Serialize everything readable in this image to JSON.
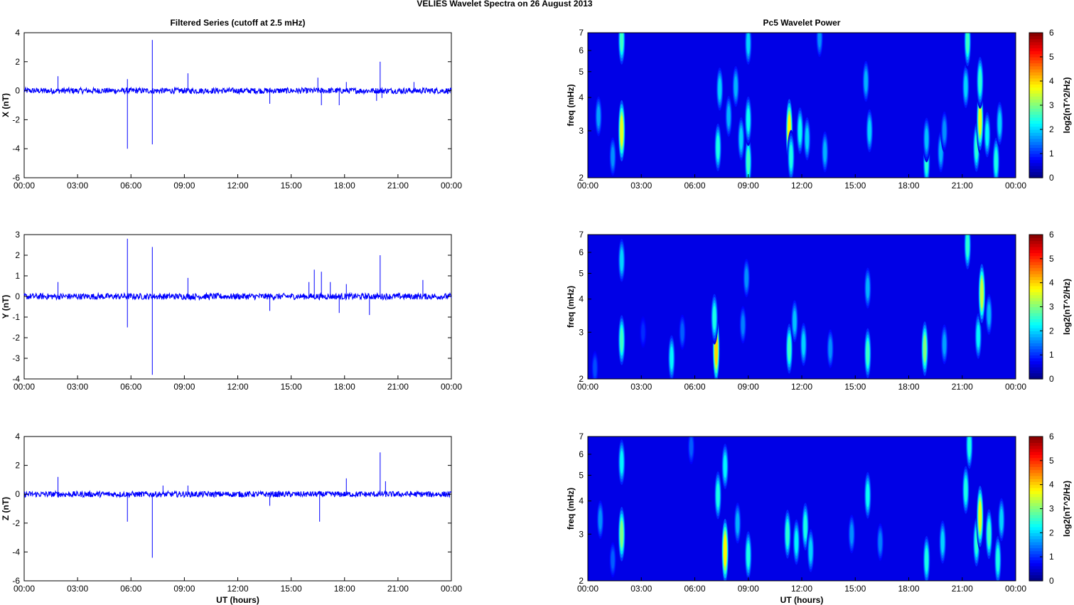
{
  "figure": {
    "title": "VELIES Wavelet Spectra on 26 August    2013"
  },
  "chart_data": [
    {
      "type": "line",
      "title": "Filtered Series (cutoff at 2.5 mHz)",
      "xlabel": "",
      "ylabel": "X (nT)",
      "xlim": [
        0,
        24
      ],
      "ylim": [
        -6,
        4
      ],
      "xticklabels": [
        "00:00",
        "03:00",
        "06:00",
        "09:00",
        "12:00",
        "15:00",
        "18:00",
        "21:00",
        "00:00"
      ],
      "yticks": [
        -6,
        -4,
        -2,
        0,
        2,
        4
      ],
      "line_color": "#0000ff",
      "baseline_amplitude": 0.2,
      "spikes": [
        [
          1.9,
          1.0
        ],
        [
          5.8,
          -4.0
        ],
        [
          5.8,
          0.8
        ],
        [
          7.2,
          3.5
        ],
        [
          7.2,
          -3.7
        ],
        [
          9.2,
          1.2
        ],
        [
          13.8,
          -0.9
        ],
        [
          16.5,
          0.9
        ],
        [
          16.7,
          -1.0
        ],
        [
          17.7,
          -1.0
        ],
        [
          18.1,
          0.6
        ],
        [
          19.8,
          -0.7
        ],
        [
          20.0,
          2.0
        ],
        [
          20.1,
          -0.5
        ],
        [
          21.9,
          0.6
        ]
      ]
    },
    {
      "type": "line",
      "xlabel": "",
      "ylabel": "Y (nT)",
      "xlim": [
        0,
        24
      ],
      "ylim": [
        -4,
        3
      ],
      "xticklabels": [
        "00:00",
        "03:00",
        "06:00",
        "09:00",
        "12:00",
        "15:00",
        "18:00",
        "21:00",
        "00:00"
      ],
      "yticks": [
        -4,
        -3,
        -2,
        -1,
        0,
        1,
        2,
        3
      ],
      "line_color": "#0000ff",
      "baseline_amplitude": 0.15,
      "spikes": [
        [
          1.9,
          0.7
        ],
        [
          5.8,
          2.8
        ],
        [
          5.8,
          -1.5
        ],
        [
          7.2,
          2.4
        ],
        [
          7.2,
          -3.8
        ],
        [
          9.2,
          0.9
        ],
        [
          13.8,
          -0.7
        ],
        [
          16.0,
          0.7
        ],
        [
          16.3,
          1.3
        ],
        [
          16.7,
          1.2
        ],
        [
          17.2,
          0.7
        ],
        [
          17.7,
          -0.8
        ],
        [
          18.1,
          0.6
        ],
        [
          19.4,
          -0.9
        ],
        [
          20.0,
          2.0
        ],
        [
          22.4,
          0.8
        ]
      ]
    },
    {
      "type": "line",
      "xlabel": "UT (hours)",
      "ylabel": "Z (nT)",
      "xlim": [
        0,
        24
      ],
      "ylim": [
        -6,
        4
      ],
      "xticklabels": [
        "00:00",
        "03:00",
        "06:00",
        "09:00",
        "12:00",
        "15:00",
        "18:00",
        "21:00",
        "00:00"
      ],
      "yticks": [
        -6,
        -4,
        -2,
        0,
        2,
        4
      ],
      "line_color": "#0000ff",
      "baseline_amplitude": 0.2,
      "spikes": [
        [
          1.9,
          1.2
        ],
        [
          5.8,
          -1.9
        ],
        [
          7.2,
          -4.4
        ],
        [
          7.8,
          0.6
        ],
        [
          9.2,
          0.6
        ],
        [
          13.8,
          -0.8
        ],
        [
          16.6,
          -1.9
        ],
        [
          18.1,
          1.1
        ],
        [
          20.0,
          2.9
        ],
        [
          20.3,
          0.9
        ]
      ]
    },
    {
      "type": "heatmap",
      "title": "Pc5 Wavelet Power",
      "xlabel": "",
      "ylabel": "freq (mHz)",
      "yscale": "log",
      "xlim": [
        0,
        24
      ],
      "ylim": [
        2,
        7
      ],
      "xticklabels": [
        "00:00",
        "03:00",
        "06:00",
        "09:00",
        "12:00",
        "15:00",
        "18:00",
        "21:00",
        "00:00"
      ],
      "yticks": [
        2,
        3,
        4,
        5,
        6,
        7
      ],
      "colormap": "jet",
      "colorbar": {
        "label": "log2(nT^2/Hz)",
        "ticks": [
          0,
          1,
          2,
          3,
          4,
          5,
          6
        ],
        "range": [
          0,
          6
        ]
      },
      "blobs": [
        {
          "t": 0.6,
          "f": 3.4,
          "power": 1.7
        },
        {
          "t": 1.4,
          "f": 2.4,
          "power": 1.6
        },
        {
          "t": 1.9,
          "f": 3.0,
          "power": 3.6
        },
        {
          "t": 1.9,
          "f": 6.6,
          "power": 2.6
        },
        {
          "t": 7.3,
          "f": 2.6,
          "power": 2.4
        },
        {
          "t": 7.4,
          "f": 4.3,
          "power": 2.0
        },
        {
          "t": 7.9,
          "f": 3.4,
          "power": 1.8
        },
        {
          "t": 8.3,
          "f": 4.4,
          "power": 1.8
        },
        {
          "t": 8.6,
          "f": 2.8,
          "power": 2.0
        },
        {
          "t": 9.0,
          "f": 2.3,
          "power": 2.6
        },
        {
          "t": 9.0,
          "f": 3.3,
          "power": 2.3
        },
        {
          "t": 9.0,
          "f": 6.4,
          "power": 2.0
        },
        {
          "t": 11.3,
          "f": 3.0,
          "power": 3.8
        },
        {
          "t": 11.4,
          "f": 2.4,
          "power": 2.4
        },
        {
          "t": 11.9,
          "f": 3.0,
          "power": 2.3
        },
        {
          "t": 12.3,
          "f": 2.8,
          "power": 2.0
        },
        {
          "t": 13.3,
          "f": 2.5,
          "power": 1.8
        },
        {
          "t": 13.0,
          "f": 6.7,
          "power": 1.6
        },
        {
          "t": 15.6,
          "f": 4.6,
          "power": 1.8
        },
        {
          "t": 15.8,
          "f": 3.0,
          "power": 2.0
        },
        {
          "t": 19.0,
          "f": 2.3,
          "power": 2.5
        },
        {
          "t": 19.0,
          "f": 2.8,
          "power": 1.9
        },
        {
          "t": 19.8,
          "f": 2.5,
          "power": 1.8
        },
        {
          "t": 20.0,
          "f": 3.0,
          "power": 1.6
        },
        {
          "t": 21.2,
          "f": 4.4,
          "power": 2.0
        },
        {
          "t": 21.3,
          "f": 6.5,
          "power": 2.6
        },
        {
          "t": 21.8,
          "f": 2.6,
          "power": 2.5
        },
        {
          "t": 22.0,
          "f": 3.3,
          "power": 3.6
        },
        {
          "t": 22.0,
          "f": 4.6,
          "power": 2.5
        },
        {
          "t": 22.4,
          "f": 2.9,
          "power": 2.2
        },
        {
          "t": 22.9,
          "f": 2.3,
          "power": 2.4
        },
        {
          "t": 23.1,
          "f": 3.2,
          "power": 2.0
        }
      ]
    },
    {
      "type": "heatmap",
      "xlabel": "",
      "ylabel": "freq (mHz)",
      "yscale": "log",
      "xlim": [
        0,
        24
      ],
      "ylim": [
        2,
        7
      ],
      "xticklabels": [
        "00:00",
        "03:00",
        "06:00",
        "09:00",
        "12:00",
        "15:00",
        "18:00",
        "21:00",
        "00:00"
      ],
      "yticks": [
        2,
        3,
        4,
        5,
        6,
        7
      ],
      "colormap": "jet",
      "colorbar": {
        "label": "log2(nT^2/Hz)",
        "ticks": [
          0,
          1,
          2,
          3,
          4,
          5,
          6
        ],
        "range": [
          0,
          6
        ]
      },
      "blobs": [
        {
          "t": 0.4,
          "f": 2.2,
          "power": 1.2
        },
        {
          "t": 1.9,
          "f": 2.8,
          "power": 2.6
        },
        {
          "t": 1.9,
          "f": 5.6,
          "power": 2.0
        },
        {
          "t": 3.1,
          "f": 3.0,
          "power": 1.0
        },
        {
          "t": 4.7,
          "f": 2.4,
          "power": 2.2
        },
        {
          "t": 5.3,
          "f": 3.0,
          "power": 1.3
        },
        {
          "t": 7.2,
          "f": 2.6,
          "power": 4.0
        },
        {
          "t": 7.1,
          "f": 3.4,
          "power": 2.4
        },
        {
          "t": 8.7,
          "f": 3.2,
          "power": 1.5
        },
        {
          "t": 8.9,
          "f": 4.8,
          "power": 1.6
        },
        {
          "t": 11.3,
          "f": 2.6,
          "power": 2.6
        },
        {
          "t": 11.6,
          "f": 3.3,
          "power": 1.9
        },
        {
          "t": 12.1,
          "f": 2.7,
          "power": 2.0
        },
        {
          "t": 13.6,
          "f": 2.6,
          "power": 1.6
        },
        {
          "t": 15.7,
          "f": 2.5,
          "power": 2.6
        },
        {
          "t": 15.7,
          "f": 4.4,
          "power": 1.8
        },
        {
          "t": 18.9,
          "f": 2.6,
          "power": 3.0
        },
        {
          "t": 20.0,
          "f": 2.7,
          "power": 1.7
        },
        {
          "t": 21.3,
          "f": 6.4,
          "power": 2.5
        },
        {
          "t": 21.9,
          "f": 2.9,
          "power": 2.2
        },
        {
          "t": 22.1,
          "f": 4.2,
          "power": 3.4
        },
        {
          "t": 22.5,
          "f": 3.5,
          "power": 1.8
        }
      ]
    },
    {
      "type": "heatmap",
      "xlabel": "UT (hours)",
      "ylabel": "freq (mHz)",
      "yscale": "log",
      "xlim": [
        0,
        24
      ],
      "ylim": [
        2,
        7
      ],
      "xticklabels": [
        "00:00",
        "03:00",
        "06:00",
        "09:00",
        "12:00",
        "15:00",
        "18:00",
        "21:00",
        "00:00"
      ],
      "yticks": [
        2,
        3,
        4,
        5,
        6,
        7
      ],
      "colormap": "jet",
      "colorbar": {
        "label": "log2(nT^2/Hz)",
        "ticks": [
          0,
          1,
          2,
          3,
          4,
          5,
          6
        ],
        "range": [
          0,
          6
        ]
      },
      "blobs": [
        {
          "t": 0.7,
          "f": 3.4,
          "power": 1.6
        },
        {
          "t": 1.4,
          "f": 2.4,
          "power": 1.3
        },
        {
          "t": 1.9,
          "f": 3.0,
          "power": 3.0
        },
        {
          "t": 1.9,
          "f": 5.6,
          "power": 2.2
        },
        {
          "t": 5.8,
          "f": 6.4,
          "power": 1.3
        },
        {
          "t": 7.3,
          "f": 4.2,
          "power": 2.4
        },
        {
          "t": 7.7,
          "f": 2.6,
          "power": 3.8
        },
        {
          "t": 7.7,
          "f": 5.4,
          "power": 2.2
        },
        {
          "t": 8.4,
          "f": 3.3,
          "power": 1.8
        },
        {
          "t": 9.0,
          "f": 2.5,
          "power": 2.4
        },
        {
          "t": 11.2,
          "f": 3.0,
          "power": 2.5
        },
        {
          "t": 11.7,
          "f": 2.8,
          "power": 2.2
        },
        {
          "t": 12.2,
          "f": 3.2,
          "power": 2.4
        },
        {
          "t": 12.5,
          "f": 2.6,
          "power": 2.0
        },
        {
          "t": 14.8,
          "f": 3.0,
          "power": 1.6
        },
        {
          "t": 15.7,
          "f": 4.2,
          "power": 2.3
        },
        {
          "t": 16.4,
          "f": 2.8,
          "power": 1.5
        },
        {
          "t": 19.0,
          "f": 2.4,
          "power": 2.4
        },
        {
          "t": 19.9,
          "f": 2.8,
          "power": 2.0
        },
        {
          "t": 21.2,
          "f": 4.4,
          "power": 2.4
        },
        {
          "t": 21.4,
          "f": 6.5,
          "power": 2.4
        },
        {
          "t": 21.8,
          "f": 2.8,
          "power": 2.5
        },
        {
          "t": 22.0,
          "f": 3.5,
          "power": 3.6
        },
        {
          "t": 22.5,
          "f": 3.0,
          "power": 2.6
        },
        {
          "t": 23.0,
          "f": 2.4,
          "power": 2.4
        },
        {
          "t": 23.2,
          "f": 3.4,
          "power": 2.0
        }
      ]
    }
  ]
}
